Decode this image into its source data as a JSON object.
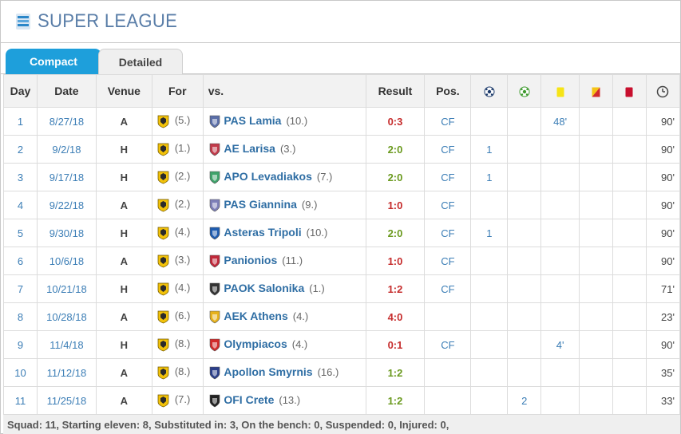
{
  "header": {
    "title": "SUPER LEAGUE",
    "logo_icon": "super-league-logo"
  },
  "tabs": [
    {
      "label": "Compact",
      "active": true
    },
    {
      "label": "Detailed",
      "active": false
    }
  ],
  "columns": {
    "day": "Day",
    "date": "Date",
    "venue": "Venue",
    "for": "For",
    "vs": "vs.",
    "result": "Result",
    "pos": "Pos.",
    "goals_icon": "goal-icon",
    "assists_icon": "assist-icon",
    "yellow_icon": "yellow-card-icon",
    "yellowred_icon": "yellow-red-card-icon",
    "red_icon": "red-card-icon",
    "minutes_icon": "clock-icon"
  },
  "colors": {
    "win": "#6b9a1f",
    "draw": "#d99614",
    "loss": "#c62d2d",
    "accent": "#1e9fdb"
  },
  "matches": [
    {
      "day": "1",
      "date": "8/27/18",
      "venue": "A",
      "for_rank": "(5.)",
      "opponent": "PAS Lamia",
      "opp_rank": "(10.)",
      "result": "0:3",
      "outcome": "loss",
      "pos": "CF",
      "goals": "",
      "assists": "",
      "yellow": "48'",
      "yellowred": "",
      "red": "",
      "minutes": "90'",
      "crest": "#5a6ea8"
    },
    {
      "day": "2",
      "date": "9/2/18",
      "venue": "H",
      "for_rank": "(1.)",
      "opponent": "AE Larisa",
      "opp_rank": "(3.)",
      "result": "2:0",
      "outcome": "win",
      "pos": "CF",
      "goals": "1",
      "assists": "",
      "yellow": "",
      "yellowred": "",
      "red": "",
      "minutes": "90'",
      "crest": "#c23a4a"
    },
    {
      "day": "3",
      "date": "9/17/18",
      "venue": "H",
      "for_rank": "(2.)",
      "opponent": "APO Levadiakos",
      "opp_rank": "(7.)",
      "result": "2:0",
      "outcome": "win",
      "pos": "CF",
      "goals": "1",
      "assists": "",
      "yellow": "",
      "yellowred": "",
      "red": "",
      "minutes": "90'",
      "crest": "#3fa36b"
    },
    {
      "day": "4",
      "date": "9/22/18",
      "venue": "A",
      "for_rank": "(2.)",
      "opponent": "PAS Giannina",
      "opp_rank": "(9.)",
      "result": "1:0",
      "outcome": "loss",
      "pos": "CF",
      "goals": "",
      "assists": "",
      "yellow": "",
      "yellowred": "",
      "red": "",
      "minutes": "90'",
      "crest": "#7d7fb8"
    },
    {
      "day": "5",
      "date": "9/30/18",
      "venue": "H",
      "for_rank": "(4.)",
      "opponent": "Asteras Tripoli",
      "opp_rank": "(10.)",
      "result": "2:0",
      "outcome": "win",
      "pos": "CF",
      "goals": "1",
      "assists": "",
      "yellow": "",
      "yellowred": "",
      "red": "",
      "minutes": "90'",
      "crest": "#1f5cb0"
    },
    {
      "day": "6",
      "date": "10/6/18",
      "venue": "A",
      "for_rank": "(3.)",
      "opponent": "Panionios",
      "opp_rank": "(11.)",
      "result": "1:0",
      "outcome": "loss",
      "pos": "CF",
      "goals": "",
      "assists": "",
      "yellow": "",
      "yellowred": "",
      "red": "",
      "minutes": "90'",
      "crest": "#c0283a"
    },
    {
      "day": "7",
      "date": "10/21/18",
      "venue": "H",
      "for_rank": "(4.)",
      "opponent": "PAOK Salonika",
      "opp_rank": "(1.)",
      "result": "1:2",
      "outcome": "loss",
      "pos": "CF",
      "goals": "",
      "assists": "",
      "yellow": "",
      "yellowred": "",
      "red": "",
      "minutes": "71'",
      "crest": "#333333"
    },
    {
      "day": "8",
      "date": "10/28/18",
      "venue": "A",
      "for_rank": "(6.)",
      "opponent": "AEK Athens",
      "opp_rank": "(4.)",
      "result": "4:0",
      "outcome": "loss",
      "pos": "",
      "goals": "",
      "assists": "",
      "yellow": "",
      "yellowred": "",
      "red": "",
      "minutes": "23'",
      "crest": "#e7b21c"
    },
    {
      "day": "9",
      "date": "11/4/18",
      "venue": "H",
      "for_rank": "(8.)",
      "opponent": "Olympiacos",
      "opp_rank": "(4.)",
      "result": "0:1",
      "outcome": "loss",
      "pos": "CF",
      "goals": "",
      "assists": "",
      "yellow": "4'",
      "yellowred": "",
      "red": "",
      "minutes": "90'",
      "crest": "#d22b2b"
    },
    {
      "day": "10",
      "date": "11/12/18",
      "venue": "A",
      "for_rank": "(8.)",
      "opponent": "Apollon Smyrnis",
      "opp_rank": "(16.)",
      "result": "1:2",
      "outcome": "win",
      "pos": "",
      "goals": "",
      "assists": "",
      "yellow": "",
      "yellowred": "",
      "red": "",
      "minutes": "35'",
      "crest": "#2b3f8a"
    },
    {
      "day": "11",
      "date": "11/25/18",
      "venue": "A",
      "for_rank": "(7.)",
      "opponent": "OFI Crete",
      "opp_rank": "(13.)",
      "result": "1:2",
      "outcome": "win",
      "pos": "",
      "goals": "",
      "assists": "2",
      "yellow": "",
      "yellowred": "",
      "red": "",
      "minutes": "33'",
      "crest": "#222222"
    }
  ],
  "footer": {
    "summary": "Squad: 11, Starting eleven: 8, Substituted in: 3, On the bench: 0, Suspended: 0, Injured: 0,"
  }
}
